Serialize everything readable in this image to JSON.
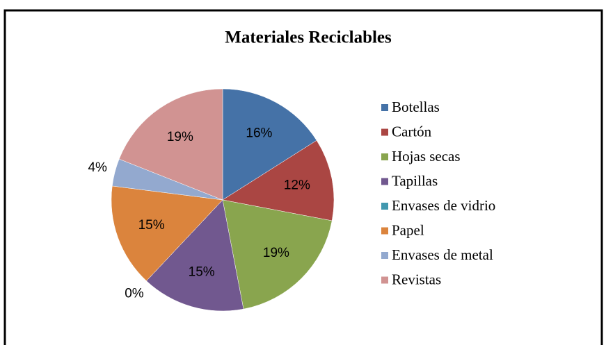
{
  "chart_data": {
    "type": "pie",
    "title": "Materiales Reciclables",
    "categories": [
      "Botellas",
      "Cartón",
      "Hojas secas",
      "Tapillas",
      "Envases de vidrio",
      "Papel",
      "Envases de metal",
      "Revistas"
    ],
    "values": [
      16,
      12,
      19,
      15,
      0,
      15,
      4,
      19
    ],
    "value_labels": [
      "16%",
      "12%",
      "19%",
      "15%",
      "0%",
      "15%",
      "4%",
      "19%"
    ],
    "colors": [
      "#4572a7",
      "#aa4643",
      "#89a54e",
      "#71588f",
      "#4198af",
      "#db843d",
      "#93a9cf",
      "#d19392"
    ],
    "legend": "right"
  }
}
